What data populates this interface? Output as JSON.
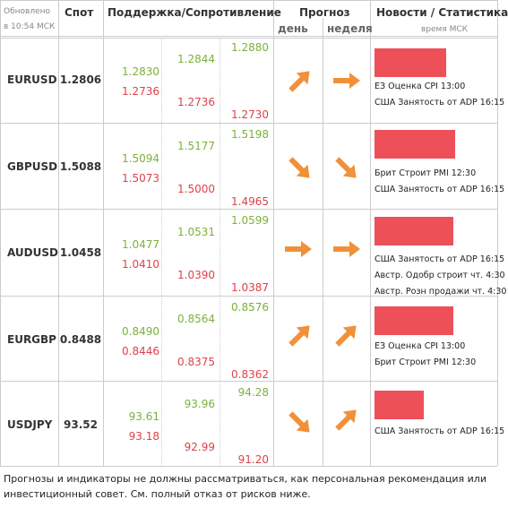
{
  "header": {
    "updated": "Обновлено",
    "updated_time": "в 10:54 МСК",
    "spot": "Спот",
    "levels": "Поддержка/Сопротивление",
    "forecast": "Прогноз",
    "day": "день",
    "week": "неделя",
    "news": "Новости / Статистика",
    "news_time": "время МСК"
  },
  "rows": [
    {
      "pair": "EURUSD",
      "spot": "1.2806",
      "levels": [
        [
          "1.2830",
          "1.2736"
        ],
        [
          "1.2844",
          "1.2736"
        ],
        [
          "1.2880",
          "1.2730"
        ]
      ],
      "news": [
        "ЕЗ Оценка CPI 13:00",
        "США Занятость от ADP 16:15"
      ]
    },
    {
      "pair": "GBPUSD",
      "spot": "1.5088",
      "levels": [
        [
          "1.5094",
          "1.5073"
        ],
        [
          "1.5177",
          "1.5000"
        ],
        [
          "1.5198",
          "1.4965"
        ]
      ],
      "news": [
        "Брит Строит PMI 12:30",
        "США Занятость от ADP 16:15"
      ]
    },
    {
      "pair": "AUDUSD",
      "spot": "1.0458",
      "levels": [
        [
          "1.0477",
          "1.0410"
        ],
        [
          "1.0531",
          "1.0390"
        ],
        [
          "1.0599",
          "1.0387"
        ]
      ],
      "news": [
        "США Занятость от ADP 16:15",
        "Австр. Одобр строит чт. 4:30",
        "Австр. Розн продажи чт. 4:30"
      ]
    },
    {
      "pair": "EURGBP",
      "spot": "0.8488",
      "levels": [
        [
          "0.8490",
          "0.8446"
        ],
        [
          "0.8564",
          "0.8375"
        ],
        [
          "0.8576",
          "0.8362"
        ]
      ],
      "news": [
        "ЕЗ Оценка CPI 13:00",
        "Брит Строит PMI 12:30"
      ]
    },
    {
      "pair": "USDJPY",
      "spot": "93.52",
      "levels": [
        [
          "93.61",
          "93.18"
        ],
        [
          "93.96",
          "92.99"
        ],
        [
          "94.28",
          "91.20"
        ]
      ],
      "news": [
        "США Занятость от ADP 16:15"
      ]
    }
  ],
  "footer": "Прогнозы и индикаторы не должны рассматриваться, как персональная рекомендация или инвестиционный совет. См. полный отказ от рисков ниже."
}
